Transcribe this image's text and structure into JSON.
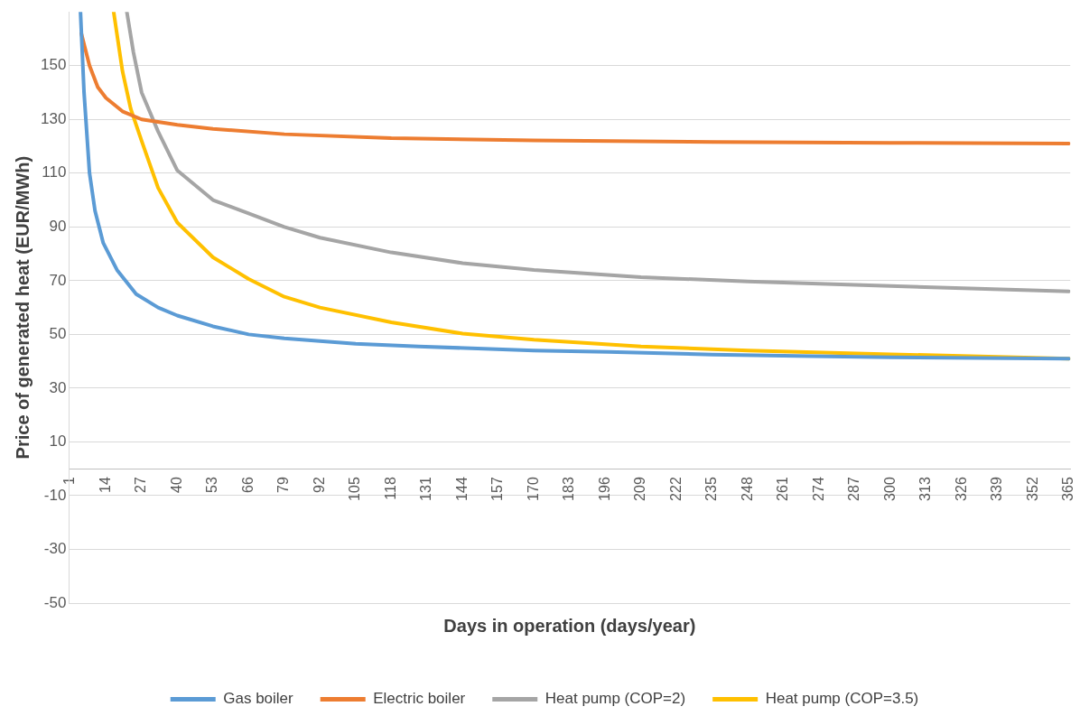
{
  "chart_data": {
    "type": "line",
    "xlabel": "Days in operation (days/year)",
    "ylabel": "Price of generated heat (EUR/MWh)",
    "xlim": [
      0.5,
      365.5
    ],
    "xticks": [
      1,
      14,
      27,
      40,
      53,
      66,
      79,
      92,
      105,
      118,
      131,
      144,
      157,
      170,
      183,
      196,
      209,
      222,
      235,
      248,
      261,
      274,
      287,
      300,
      313,
      326,
      339,
      352,
      365
    ],
    "ylim": [
      -50,
      170
    ],
    "yticks": [
      -50,
      -30,
      -10,
      10,
      30,
      50,
      70,
      90,
      110,
      130,
      150
    ],
    "grid": "y",
    "legend": "bottom",
    "marker": "none",
    "line_style": "solid",
    "series": [
      {
        "name": "Gas boiler",
        "color": "#5b9bd5",
        "x": [
          4.7,
          6,
          8,
          10,
          13,
          18,
          25,
          33,
          40,
          53,
          66,
          79,
          105,
          128,
          170,
          197,
          235,
          266,
          300,
          365
        ],
        "values": [
          170,
          140,
          110,
          96,
          84,
          74,
          65,
          60,
          57,
          53,
          50,
          48.5,
          46.5,
          45.5,
          44,
          43.5,
          42.5,
          42,
          41.5,
          41
        ]
      },
      {
        "name": "Electric boiler",
        "color": "#ed7d31",
        "x": [
          5,
          8,
          11,
          14,
          20,
          27,
          40,
          53,
          79,
          118,
          170,
          235,
          300,
          365
        ],
        "values": [
          162,
          150,
          142,
          138,
          133,
          130,
          128,
          126.5,
          124.5,
          123,
          122.2,
          121.6,
          121.3,
          121
        ]
      },
      {
        "name": "Heat pump (COP=2)",
        "color": "#a5a5a5",
        "x": [
          21.6,
          24,
          27,
          33,
          40,
          53,
          66,
          79,
          92,
          118,
          144,
          170,
          209,
          248,
          300,
          365
        ],
        "values": [
          170,
          155,
          140,
          125.5,
          111,
          100,
          95,
          90,
          86,
          80.5,
          76.5,
          74,
          71.3,
          69.7,
          68,
          66
        ]
      },
      {
        "name": "Heat pump (COP=3.5)",
        "color": "#ffc000",
        "x": [
          16.8,
          20,
          23,
          27,
          33,
          40,
          53,
          66,
          79,
          92,
          118,
          144,
          170,
          209,
          248,
          300,
          365
        ],
        "values": [
          170,
          148,
          134,
          122,
          104.5,
          91.6,
          78.7,
          70.6,
          64,
          60,
          54.5,
          50.3,
          48,
          45.5,
          44,
          42.6,
          41
        ]
      }
    ]
  }
}
